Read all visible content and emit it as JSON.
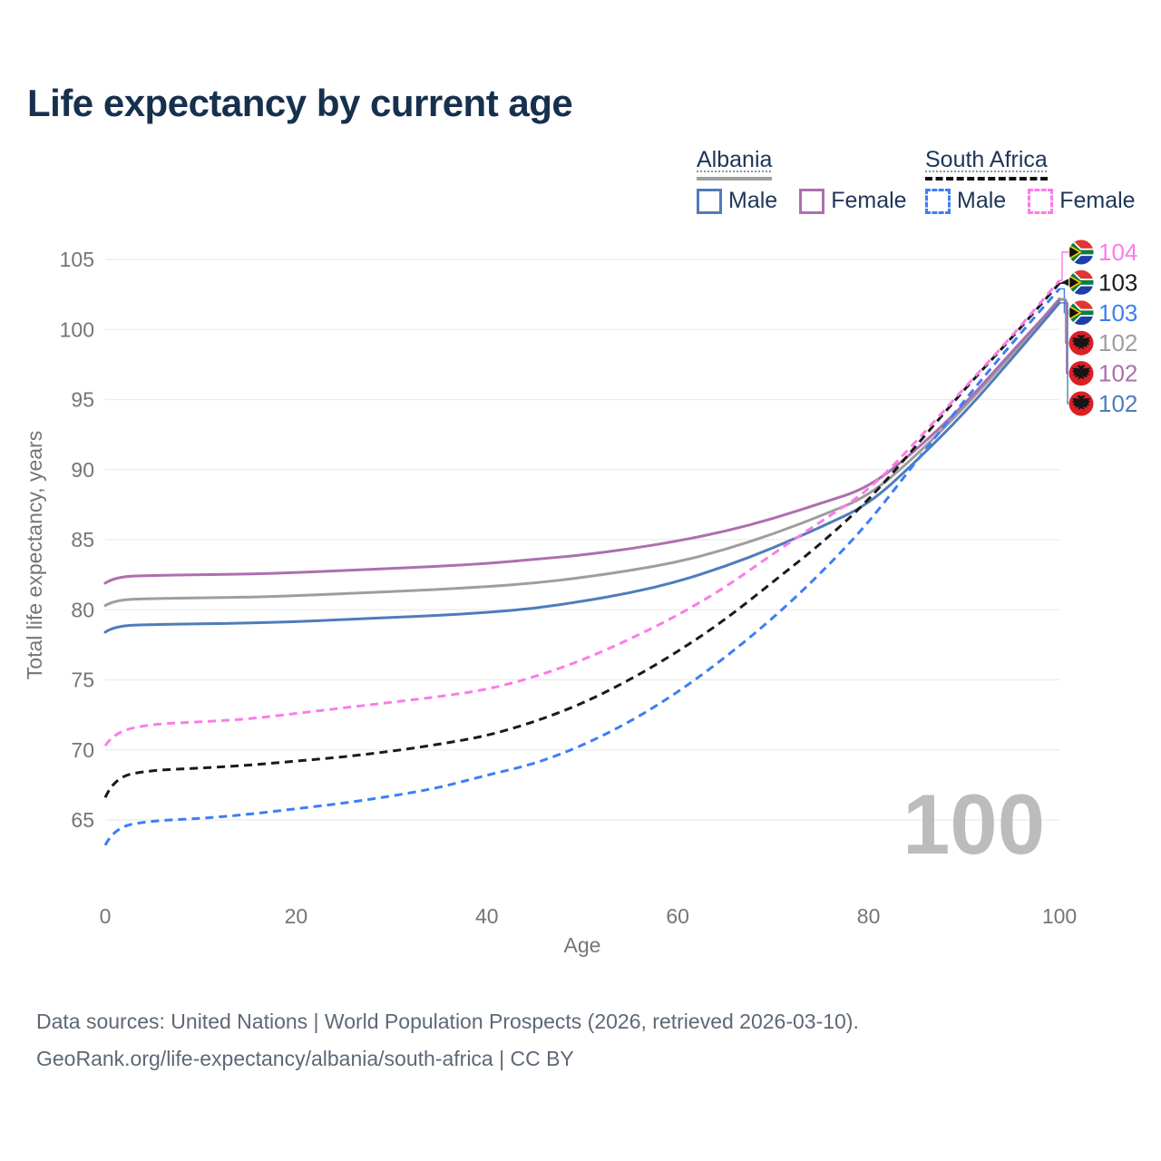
{
  "title": "Life expectancy by current age",
  "colors": {
    "background": "#ffffff",
    "title_text": "#16304d",
    "legend_text": "#1d3557",
    "axis_text": "#757575",
    "grid": "#ebebeb",
    "footer_text": "#5d6876",
    "watermark": "#bcbcbc",
    "albania_sample_bar": "#9e9e9e",
    "south_africa_sample_bar": "#111111"
  },
  "legend": {
    "groups": [
      {
        "id": "albania",
        "label": "Albania",
        "line_style": "solid",
        "line_color": "#9e9e9e",
        "items": [
          {
            "label": "Male",
            "color": "#4f7cba",
            "dashed": false
          },
          {
            "label": "Female",
            "color": "#ad6fad",
            "dashed": false
          }
        ]
      },
      {
        "id": "south-africa",
        "label": "South Africa",
        "line_style": "dashed",
        "line_color": "#111111",
        "items": [
          {
            "label": "Male",
            "color": "#3d7ef5",
            "dashed": true
          },
          {
            "label": "Female",
            "color": "#fb7ce8",
            "dashed": true
          }
        ]
      }
    ]
  },
  "chart_data": {
    "type": "line",
    "title": "Life expectancy by current age",
    "xlabel": "Age",
    "ylabel": "Total life expectancy, years",
    "x_ticks": [
      0,
      20,
      40,
      60,
      80,
      100
    ],
    "y_ticks": [
      65,
      70,
      75,
      80,
      85,
      90,
      95,
      100,
      105
    ],
    "xlim": [
      0,
      100
    ],
    "ylim": [
      63,
      106.5
    ],
    "grid": "horizontal",
    "legend_position": "top-right",
    "watermark": "100",
    "ages": [
      0,
      1,
      5,
      10,
      15,
      20,
      25,
      30,
      35,
      40,
      45,
      50,
      55,
      60,
      65,
      70,
      75,
      80,
      85,
      90,
      95,
      100
    ],
    "series": [
      {
        "name": "Albania Total",
        "country": "Albania",
        "category": "Total",
        "color": "#9e9e9e",
        "line_style": "solid",
        "flag": "albania",
        "end_label": "102",
        "values": [
          80.3,
          80.7,
          80.8,
          80.85,
          80.9,
          81.0,
          81.15,
          81.3,
          81.45,
          81.65,
          81.9,
          82.3,
          82.8,
          83.4,
          84.3,
          85.4,
          86.7,
          88.1,
          91.0,
          94.4,
          98.2,
          102.2
        ]
      },
      {
        "name": "Albania Female",
        "country": "Albania",
        "category": "Female",
        "color": "#ad6fad",
        "line_style": "solid",
        "flag": "albania",
        "end_label": "102",
        "values": [
          81.9,
          82.35,
          82.45,
          82.5,
          82.55,
          82.65,
          82.8,
          82.95,
          83.1,
          83.3,
          83.6,
          83.9,
          84.35,
          84.9,
          85.6,
          86.5,
          87.6,
          88.7,
          91.4,
          94.6,
          98.4,
          102.1
        ]
      },
      {
        "name": "Albania Male",
        "country": "Albania",
        "category": "Male",
        "color": "#4f7cba",
        "line_style": "solid",
        "flag": "albania",
        "end_label": "102",
        "values": [
          78.4,
          78.85,
          78.95,
          79.0,
          79.05,
          79.15,
          79.3,
          79.45,
          79.6,
          79.8,
          80.1,
          80.6,
          81.2,
          82.0,
          83.1,
          84.4,
          85.9,
          87.5,
          90.6,
          94.0,
          97.9,
          101.9
        ]
      },
      {
        "name": "South Africa Male",
        "country": "South Africa",
        "category": "Male",
        "color": "#3d7ef5",
        "line_style": "dashed",
        "flag": "south-africa",
        "end_label": "103",
        "values": [
          63.2,
          64.5,
          64.95,
          65.1,
          65.4,
          65.8,
          66.2,
          66.7,
          67.3,
          68.2,
          69.0,
          70.3,
          72.0,
          74.1,
          76.6,
          79.4,
          82.6,
          86.2,
          90.6,
          94.9,
          99.0,
          102.9
        ]
      },
      {
        "name": "South Africa Total",
        "country": "South Africa",
        "category": "Total",
        "color": "#1a1a1a",
        "line_style": "dashed",
        "flag": "south-africa",
        "end_label": "103",
        "values": [
          66.6,
          68.1,
          68.55,
          68.7,
          68.9,
          69.2,
          69.5,
          69.9,
          70.4,
          71.0,
          72.0,
          73.3,
          75.0,
          77.0,
          79.3,
          82.0,
          84.7,
          87.8,
          91.7,
          95.7,
          99.4,
          103.3
        ]
      },
      {
        "name": "South Africa Female",
        "country": "South Africa",
        "category": "Female",
        "color": "#fb7ce8",
        "line_style": "dashed",
        "flag": "south-africa",
        "end_label": "104",
        "values": [
          70.3,
          71.3,
          71.85,
          72.0,
          72.2,
          72.6,
          73.0,
          73.4,
          73.8,
          74.3,
          75.2,
          76.4,
          77.9,
          79.6,
          81.6,
          84.0,
          86.3,
          88.5,
          92.0,
          95.8,
          99.5,
          103.5
        ]
      }
    ]
  },
  "footer": {
    "line1": "Data sources: United Nations | World Population Prospects (2026, retrieved 2026-03-10).",
    "line2": "GeoRank.org/life-expectancy/albania/south-africa | CC BY"
  }
}
